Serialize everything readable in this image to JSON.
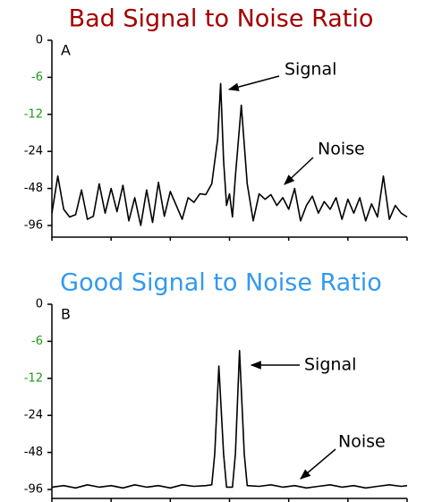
{
  "chart_data": [
    {
      "type": "line",
      "title": "Bad Signal to Noise Ratio",
      "title_color": "#a30000",
      "panel_label": "A",
      "annotations": [
        "Signal",
        "Noise"
      ],
      "ylim": [
        -96,
        0
      ],
      "yticks": [
        0,
        -6,
        -12,
        -24,
        -48,
        -96
      ],
      "ytick_colors": [
        "#000000",
        "#1a9a1a",
        "#1a9a1a",
        "#000000",
        "#000000",
        "#000000"
      ],
      "xlim": [
        0,
        6
      ],
      "xticks": [
        0,
        1,
        2,
        3,
        4,
        5,
        6
      ],
      "color": "#000000",
      "x": [
        0,
        0.1,
        0.2,
        0.3,
        0.4,
        0.5,
        0.6,
        0.7,
        0.8,
        0.9,
        1.0,
        1.1,
        1.2,
        1.3,
        1.4,
        1.5,
        1.6,
        1.7,
        1.8,
        1.9,
        2.0,
        2.1,
        2.2,
        2.3,
        2.4,
        2.5,
        2.6,
        2.7,
        2.8,
        2.85,
        2.9,
        2.95,
        3.0,
        3.05,
        3.1,
        3.2,
        3.3,
        3.4,
        3.5,
        3.6,
        3.7,
        3.8,
        3.9,
        4.0,
        4.1,
        4.2,
        4.3,
        4.4,
        4.5,
        4.6,
        4.7,
        4.8,
        4.9,
        5.0,
        5.1,
        5.2,
        5.3,
        5.4,
        5.5,
        5.6,
        5.7,
        5.8,
        5.9,
        6.0
      ],
      "values": [
        -80,
        -40,
        -75,
        -85,
        -82,
        -50,
        -88,
        -84,
        -45,
        -80,
        -48,
        -78,
        -46,
        -90,
        -60,
        -96,
        -50,
        -92,
        -44,
        -84,
        -52,
        -70,
        -88,
        -60,
        -66,
        -55,
        -56,
        -45,
        -20,
        -7,
        -30,
        -70,
        -55,
        -85,
        -40,
        -10.5,
        -45,
        -90,
        -55,
        -62,
        -56,
        -70,
        -60,
        -75,
        -48,
        -90,
        -70,
        -58,
        -80,
        -65,
        -75,
        -60,
        -88,
        -62,
        -80,
        -60,
        -90,
        -68,
        -85,
        -40,
        -88,
        -70,
        -80,
        -85
      ]
    },
    {
      "type": "line",
      "title": "Good Signal to Noise Ratio",
      "title_color": "#3399ee",
      "panel_label": "B",
      "annotations": [
        "Signal",
        "Noise"
      ],
      "ylim": [
        -96,
        0
      ],
      "yticks": [
        0,
        -6,
        -12,
        -24,
        -48,
        -96
      ],
      "ytick_colors": [
        "#000000",
        "#1a9a1a",
        "#1a9a1a",
        "#000000",
        "#000000",
        "#000000"
      ],
      "xlim": [
        0,
        6
      ],
      "xticks": [
        0,
        1,
        2,
        3,
        4,
        5,
        6
      ],
      "color": "#000000",
      "x": [
        0,
        0.2,
        0.4,
        0.6,
        0.8,
        1.0,
        1.2,
        1.4,
        1.6,
        1.8,
        2.0,
        2.2,
        2.4,
        2.6,
        2.7,
        2.75,
        2.82,
        2.9,
        2.95,
        3.05,
        3.1,
        3.17,
        3.25,
        3.3,
        3.5,
        3.7,
        3.9,
        4.1,
        4.3,
        4.5,
        4.7,
        4.9,
        5.1,
        5.3,
        5.5,
        5.7,
        5.9,
        6.0
      ],
      "values": [
        -93,
        -91,
        -94,
        -90,
        -93,
        -91,
        -94,
        -90,
        -93,
        -91,
        -94,
        -90,
        -92,
        -91,
        -90,
        -50,
        -10,
        -50,
        -93,
        -93,
        -50,
        -7.5,
        -50,
        -91,
        -92,
        -90,
        -93,
        -91,
        -94,
        -92,
        -90,
        -93,
        -91,
        -94,
        -92,
        -90,
        -92,
        -91
      ]
    }
  ]
}
